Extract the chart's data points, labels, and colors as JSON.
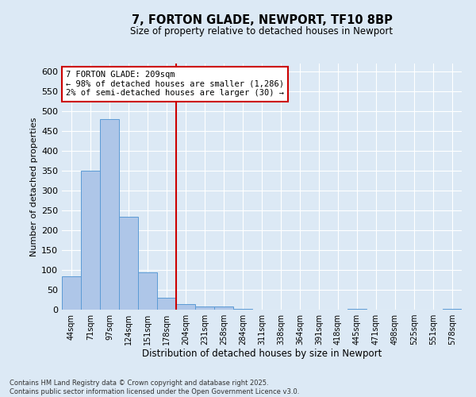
{
  "title_line1": "7, FORTON GLADE, NEWPORT, TF10 8BP",
  "title_line2": "Size of property relative to detached houses in Newport",
  "xlabel": "Distribution of detached houses by size in Newport",
  "ylabel": "Number of detached properties",
  "footnote_line1": "Contains HM Land Registry data © Crown copyright and database right 2025.",
  "footnote_line2": "Contains public sector information licensed under the Open Government Licence v3.0.",
  "annotation_line1": "7 FORTON GLADE: 209sqm",
  "annotation_line2": "← 98% of detached houses are smaller (1,286)",
  "annotation_line3": "2% of semi-detached houses are larger (30) →",
  "bar_color": "#aec6e8",
  "bar_edge_color": "#5b9bd5",
  "redline_color": "#cc0000",
  "background_color": "#dce9f5",
  "gridcolor": "#ffffff",
  "categories": [
    "44sqm",
    "71sqm",
    "97sqm",
    "124sqm",
    "151sqm",
    "178sqm",
    "204sqm",
    "231sqm",
    "258sqm",
    "284sqm",
    "311sqm",
    "338sqm",
    "364sqm",
    "391sqm",
    "418sqm",
    "445sqm",
    "471sqm",
    "498sqm",
    "525sqm",
    "551sqm",
    "578sqm"
  ],
  "values": [
    85,
    350,
    480,
    235,
    95,
    30,
    15,
    8,
    8,
    2,
    0,
    0,
    0,
    0,
    0,
    2,
    0,
    0,
    0,
    0,
    2
  ],
  "redline_index": 6,
  "ylim": [
    0,
    620
  ],
  "yticks": [
    0,
    50,
    100,
    150,
    200,
    250,
    300,
    350,
    400,
    450,
    500,
    550,
    600
  ]
}
